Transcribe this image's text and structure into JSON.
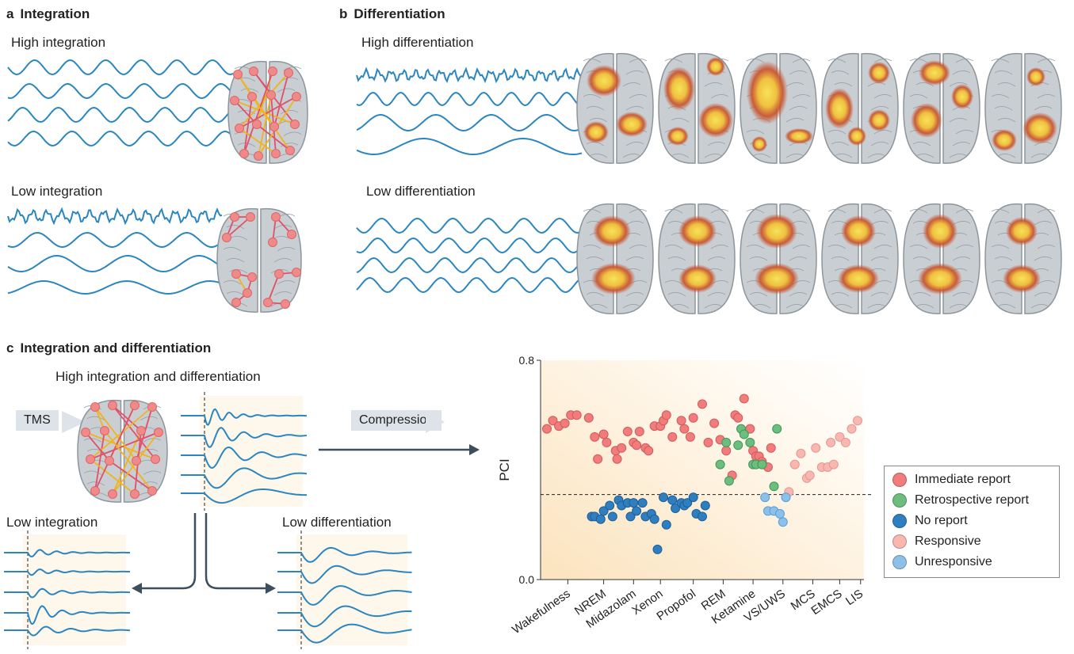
{
  "panels": {
    "a": {
      "letter": "a",
      "title": "Integration",
      "high": "High integration",
      "low": "Low integration"
    },
    "b": {
      "letter": "b",
      "title": "Differentiation",
      "high": "High differentiation",
      "low": "Low differentiation"
    },
    "c": {
      "letter": "c",
      "title": "Integration and differentiation",
      "high": "High integration and differentiation",
      "tms": "TMS",
      "compression": "Compression",
      "low_integration": "Low integration",
      "low_differentiation": "Low differentiation"
    }
  },
  "colors": {
    "wave": "#2b86c0",
    "node": "#f08a8a",
    "edge_red": "#e0506a",
    "edge_yellow": "#f2b31c",
    "immediate": "#f07c7c",
    "retrospective": "#6cbd7e",
    "no_report": "#2f7fc0",
    "responsive": "#f8b7b0",
    "unresponsive": "#8cc0e8",
    "arrow": "#3d4f5c"
  },
  "chart_data": {
    "type": "scatter",
    "ylabel": "PCI",
    "ylim": [
      0.0,
      0.8
    ],
    "yticks": [
      "0.0",
      "0.8"
    ],
    "threshold": 0.31,
    "categories": [
      "Wakefulness",
      "NREM",
      "Midazolam",
      "Xenon",
      "Propofol",
      "REM",
      "Ketamine",
      "VS/UWS",
      "MCS",
      "EMCS",
      "LIS"
    ],
    "legend": [
      {
        "name": "Immediate report",
        "color": "#f07c7c"
      },
      {
        "name": "Retrospective report",
        "color": "#6cbd7e"
      },
      {
        "name": "No report",
        "color": "#2f7fc0"
      },
      {
        "name": "Responsive",
        "color": "#f8b7b0"
      },
      {
        "name": "Unresponsive",
        "color": "#8cc0e8"
      }
    ],
    "series": [
      {
        "name": "Immediate report",
        "points": [
          [
            0.0,
            0.55
          ],
          [
            0.2,
            0.58
          ],
          [
            0.4,
            0.56
          ],
          [
            0.6,
            0.57
          ],
          [
            0.8,
            0.6
          ],
          [
            1.0,
            0.6
          ],
          [
            1.4,
            0.59
          ],
          [
            1.6,
            0.52
          ],
          [
            1.7,
            0.44
          ],
          [
            1.9,
            0.53
          ],
          [
            2.0,
            0.5
          ],
          [
            2.3,
            0.47
          ],
          [
            2.35,
            0.44
          ],
          [
            2.5,
            0.48
          ],
          [
            2.7,
            0.54
          ],
          [
            2.9,
            0.5
          ],
          [
            3.0,
            0.49
          ],
          [
            3.1,
            0.54
          ],
          [
            3.3,
            0.48
          ],
          [
            3.4,
            0.47
          ],
          [
            3.6,
            0.56
          ],
          [
            3.8,
            0.56
          ],
          [
            3.9,
            0.58
          ],
          [
            4.0,
            0.6
          ],
          [
            4.2,
            0.52
          ],
          [
            4.5,
            0.58
          ],
          [
            4.6,
            0.55
          ],
          [
            4.8,
            0.52
          ],
          [
            4.9,
            0.59
          ],
          [
            5.2,
            0.64
          ],
          [
            5.4,
            0.5
          ],
          [
            5.6,
            0.57
          ],
          [
            5.8,
            0.51
          ],
          [
            6.0,
            0.47
          ],
          [
            6.2,
            0.38
          ],
          [
            6.3,
            0.6
          ],
          [
            6.4,
            0.59
          ],
          [
            6.6,
            0.66
          ],
          [
            6.8,
            0.55
          ],
          [
            6.9,
            0.47
          ],
          [
            7.0,
            0.45
          ],
          [
            7.1,
            0.45
          ],
          [
            7.2,
            0.43
          ],
          [
            7.4,
            0.41
          ],
          [
            7.5,
            0.48
          ]
        ]
      },
      {
        "name": "Retrospective report",
        "points": [
          [
            5.8,
            0.42
          ],
          [
            6.0,
            0.5
          ],
          [
            6.1,
            0.36
          ],
          [
            6.4,
            0.49
          ],
          [
            6.5,
            0.55
          ],
          [
            6.6,
            0.53
          ],
          [
            6.8,
            0.5
          ],
          [
            6.9,
            0.42
          ],
          [
            7.0,
            0.42
          ],
          [
            7.2,
            0.42
          ],
          [
            7.6,
            0.34
          ],
          [
            7.7,
            0.55
          ]
        ]
      },
      {
        "name": "No report",
        "points": [
          [
            1.5,
            0.23
          ],
          [
            1.6,
            0.23
          ],
          [
            1.8,
            0.22
          ],
          [
            1.9,
            0.25
          ],
          [
            2.1,
            0.27
          ],
          [
            2.2,
            0.23
          ],
          [
            2.4,
            0.29
          ],
          [
            2.5,
            0.27
          ],
          [
            2.7,
            0.28
          ],
          [
            2.8,
            0.23
          ],
          [
            2.9,
            0.28
          ],
          [
            3.0,
            0.25
          ],
          [
            3.2,
            0.28
          ],
          [
            3.3,
            0.23
          ],
          [
            3.5,
            0.24
          ],
          [
            3.6,
            0.22
          ],
          [
            3.7,
            0.11
          ],
          [
            3.9,
            0.3
          ],
          [
            4.0,
            0.2
          ],
          [
            4.2,
            0.29
          ],
          [
            4.3,
            0.26
          ],
          [
            4.5,
            0.28
          ],
          [
            4.6,
            0.27
          ],
          [
            4.7,
            0.28
          ],
          [
            4.9,
            0.3
          ],
          [
            5.0,
            0.24
          ],
          [
            5.2,
            0.23
          ],
          [
            5.3,
            0.27
          ]
        ]
      },
      {
        "name": "Responsive",
        "points": [
          [
            8.1,
            0.32
          ],
          [
            8.3,
            0.42
          ],
          [
            8.5,
            0.46
          ],
          [
            8.7,
            0.37
          ],
          [
            8.8,
            0.38
          ],
          [
            9.0,
            0.48
          ],
          [
            9.2,
            0.41
          ],
          [
            9.4,
            0.41
          ],
          [
            9.5,
            0.5
          ],
          [
            9.6,
            0.42
          ],
          [
            9.8,
            0.52
          ],
          [
            10.0,
            0.5
          ],
          [
            10.2,
            0.55
          ],
          [
            10.4,
            0.58
          ]
        ]
      },
      {
        "name": "Unresponsive",
        "points": [
          [
            7.3,
            0.3
          ],
          [
            7.4,
            0.25
          ],
          [
            7.6,
            0.25
          ],
          [
            7.8,
            0.24
          ],
          [
            7.9,
            0.21
          ],
          [
            8.0,
            0.3
          ]
        ]
      }
    ]
  }
}
